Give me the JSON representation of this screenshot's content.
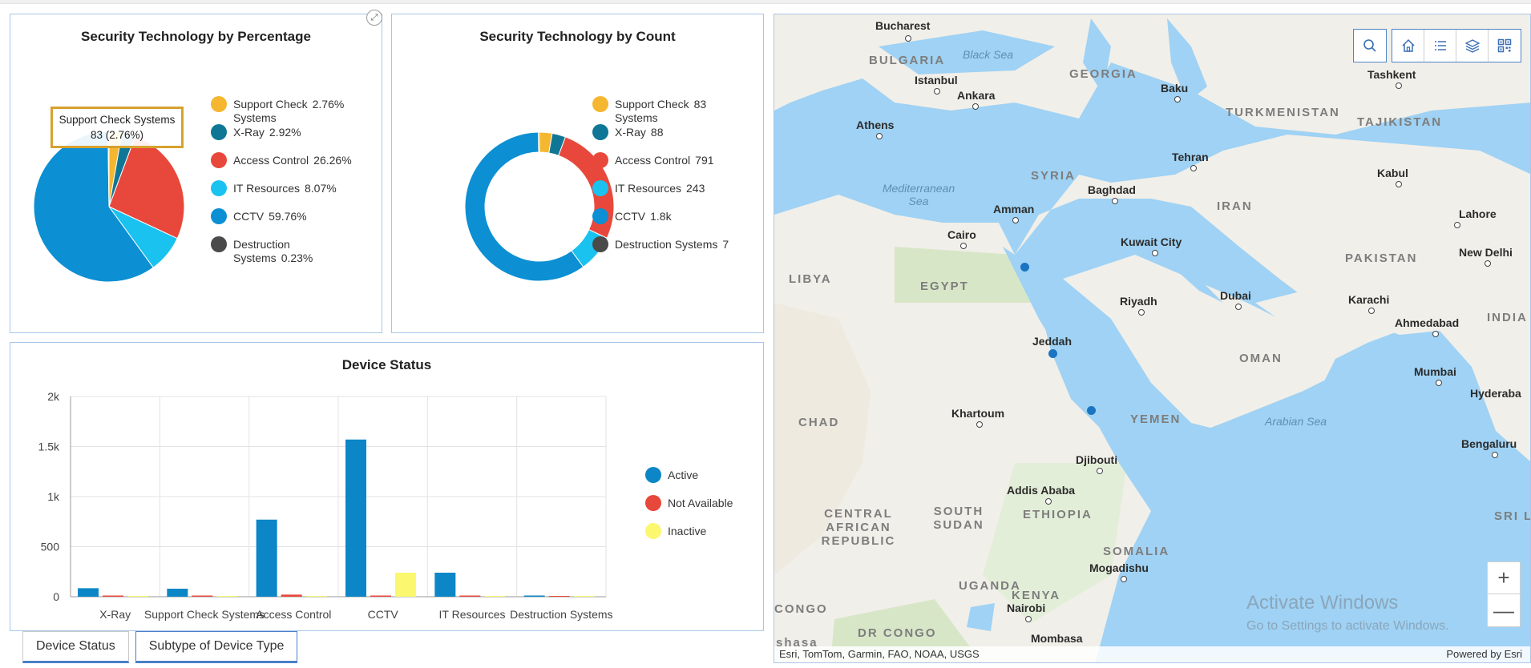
{
  "colors": {
    "support_check": "#f5b730",
    "xray": "#0f7795",
    "access_control": "#e8483b",
    "it_resources": "#1ac2f0",
    "cctv": "#0c8fd3",
    "destruction": "#4a4a4a",
    "active": "#0c86c7",
    "not_available": "#e8483b",
    "inactive": "#fbf86f"
  },
  "pie_panel": {
    "title": "Security Technology by Percentage",
    "expand_icon": "expand-icon",
    "tooltip_line1": "Support Check Systems",
    "tooltip_line2": "83 (2.76%)",
    "legend": [
      {
        "label": "Support Check Systems",
        "value": "2.76%"
      },
      {
        "label": "X-Ray",
        "value": "2.92%"
      },
      {
        "label": "Access Control",
        "value": "26.26%"
      },
      {
        "label": "IT Resources",
        "value": "8.07%"
      },
      {
        "label": "CCTV",
        "value": "59.76%"
      },
      {
        "label": "Destruction Systems",
        "value": "0.23%"
      }
    ]
  },
  "donut_panel": {
    "title": "Security Technology by Count",
    "legend": [
      {
        "label": "Support Check Systems",
        "value": "83"
      },
      {
        "label": "X-Ray",
        "value": "88"
      },
      {
        "label": "Access Control",
        "value": "791"
      },
      {
        "label": "IT Resources",
        "value": "243"
      },
      {
        "label": "CCTV",
        "value": "1.8k"
      },
      {
        "label": "Destruction Systems",
        "value": "7"
      }
    ]
  },
  "status_panel": {
    "title": "Device Status",
    "legend": [
      "Active",
      "Not Available",
      "Inactive"
    ]
  },
  "tabs": [
    {
      "label": "Device Status",
      "active": true
    },
    {
      "label": "Subtype of Device Type",
      "active": false
    }
  ],
  "chart_data": [
    {
      "type": "pie",
      "title": "Security Technology by Percentage",
      "categories": [
        "Support Check Systems",
        "X-Ray",
        "Access Control",
        "IT Resources",
        "CCTV",
        "Destruction Systems"
      ],
      "values": [
        2.76,
        2.92,
        26.26,
        8.07,
        59.76,
        0.23
      ]
    },
    {
      "type": "pie",
      "title": "Security Technology by Count",
      "categories": [
        "Support Check Systems",
        "X-Ray",
        "Access Control",
        "IT Resources",
        "CCTV",
        "Destruction Systems"
      ],
      "values": [
        83,
        88,
        791,
        243,
        1800,
        7
      ]
    },
    {
      "type": "bar",
      "title": "Device Status",
      "categories": [
        "X-Ray",
        "Support Check Systems",
        "Access Control",
        "CCTV",
        "IT Resources",
        "Destruction Systems"
      ],
      "series": [
        {
          "name": "Active",
          "values": [
            85,
            80,
            770,
            1570,
            240,
            7
          ]
        },
        {
          "name": "Not Available",
          "values": [
            3,
            3,
            21,
            10,
            3,
            0
          ]
        },
        {
          "name": "Inactive",
          "values": [
            0,
            0,
            0,
            240,
            0,
            0
          ]
        }
      ],
      "yticks": [
        "0",
        "500",
        "1k",
        "1.5k",
        "2k"
      ],
      "ylim": [
        0,
        2000
      ],
      "grid": true,
      "legend": "right"
    }
  ],
  "map": {
    "attribution": "Esri, TomTom, Garmin, FAO, NOAA, USGS",
    "powered_by": "Powered by Esri",
    "watermark_line1": "Activate Windows",
    "watermark_line2": "Go to Settings to activate Windows.",
    "zoom_in": "+",
    "zoom_out": "—",
    "cities": [
      "Bucharest",
      "Istanbul",
      "Ankara",
      "Athens",
      "Baku",
      "Tashkent",
      "Tehran",
      "Kabul",
      "Baghdad",
      "Amman",
      "Cairo",
      "Kuwait City",
      "Lahore",
      "New Delhi",
      "Riyadh",
      "Dubai",
      "Karachi",
      "Ahmedabad",
      "Jeddah",
      "Mumbai",
      "Hyderaba",
      "Khartoum",
      "Djibouti",
      "Bengaluru",
      "Addis Ababa",
      "Mogadishu",
      "Nairobi",
      "Mombasa"
    ],
    "countries": [
      "BULGARIA",
      "GEORGIA",
      "TURKMENISTAN",
      "TAJIKISTAN",
      "SYRIA",
      "IRAN",
      "LIBYA",
      "EGYPT",
      "PAKISTAN",
      "INDIA",
      "OMAN",
      "CHAD",
      "YEMEN",
      "SOUTH SUDAN",
      "ETHIOPIA",
      "CENTRAL AFRICAN REPUBLIC",
      "SOMALIA",
      "UGANDA",
      "KENYA",
      "DR CONGO",
      "SRI LA",
      "CONGO",
      "shasa"
    ],
    "seas": [
      "Black Sea",
      "Mediterranean Sea",
      "Arabian Sea"
    ],
    "toolbar_icons": [
      "search-icon",
      "home-icon",
      "list-icon",
      "layers-icon",
      "qr-icon"
    ]
  }
}
